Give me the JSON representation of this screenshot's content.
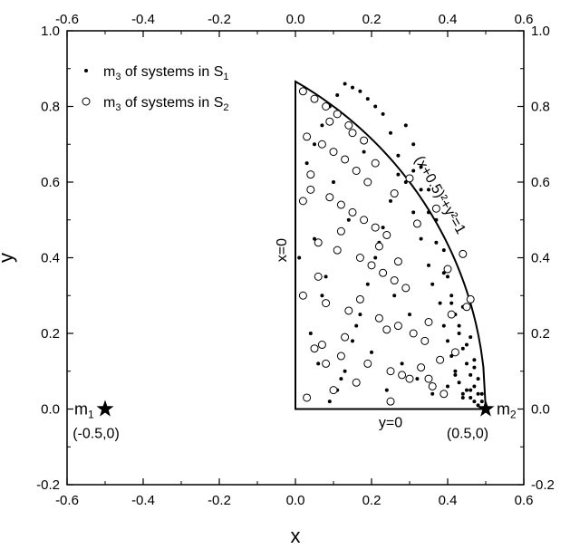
{
  "chart_data": {
    "type": "scatter",
    "xlabel": "x",
    "ylabel": "y",
    "xlim": [
      -0.6,
      0.6
    ],
    "ylim": [
      -0.2,
      1.0
    ],
    "xticks": [
      -0.6,
      -0.4,
      -0.2,
      0.0,
      0.2,
      0.4,
      0.6
    ],
    "yticks": [
      -0.2,
      0.0,
      0.2,
      0.4,
      0.6,
      0.8,
      1.0
    ],
    "x_tick_labels": [
      "-0.6",
      "-0.4",
      "-0.2",
      "0.0",
      "0.2",
      "0.4",
      "0.6"
    ],
    "y_tick_labels": [
      "-0.2",
      "0.0",
      "0.2",
      "0.4",
      "0.6",
      "0.8",
      "1.0"
    ],
    "grid": false,
    "legend_position": "top-left",
    "series": [
      {
        "name_main": "m",
        "name_sub": "3",
        "name_rest": " of systems in S",
        "name_sub2": "1",
        "marker": "filled-dot",
        "color": "#000000",
        "x": [
          0.48,
          0.47,
          0.46,
          0.49,
          0.45,
          0.44,
          0.47,
          0.43,
          0.46,
          0.48,
          0.42,
          0.45,
          0.41,
          0.44,
          0.47,
          0.4,
          0.43,
          0.39,
          0.42,
          0.46,
          0.38,
          0.41,
          0.36,
          0.4,
          0.44,
          0.35,
          0.39,
          0.33,
          0.37,
          0.31,
          0.35,
          0.29,
          0.33,
          0.27,
          0.31,
          0.25,
          0.29,
          0.23,
          0.27,
          0.21,
          0.25,
          0.19,
          0.23,
          0.17,
          0.21,
          0.15,
          0.19,
          0.13,
          0.17,
          0.11,
          0.15,
          0.09,
          0.13,
          0.07,
          0.11,
          0.05,
          0.09,
          0.03,
          0.07,
          0.02,
          0.05,
          0.01,
          0.04,
          0.06,
          0.08,
          0.1,
          0.12,
          0.14,
          0.16,
          0.18,
          0.2,
          0.22,
          0.24,
          0.26,
          0.28,
          0.3,
          0.32,
          0.34,
          0.36,
          0.38,
          0.4,
          0.42,
          0.44,
          0.46,
          0.48,
          0.49,
          0.47,
          0.45,
          0.43,
          0.41,
          0.39,
          0.37,
          0.35,
          0.33,
          0.31
        ],
        "y": [
          0.01,
          0.02,
          0.03,
          0.02,
          0.05,
          0.04,
          0.06,
          0.07,
          0.09,
          0.04,
          0.1,
          0.12,
          0.14,
          0.16,
          0.11,
          0.18,
          0.2,
          0.22,
          0.25,
          0.19,
          0.28,
          0.3,
          0.33,
          0.35,
          0.27,
          0.38,
          0.42,
          0.45,
          0.5,
          0.52,
          0.58,
          0.6,
          0.64,
          0.67,
          0.7,
          0.73,
          0.75,
          0.78,
          0.62,
          0.8,
          0.55,
          0.82,
          0.48,
          0.84,
          0.4,
          0.85,
          0.33,
          0.86,
          0.25,
          0.83,
          0.18,
          0.8,
          0.1,
          0.75,
          0.05,
          0.7,
          0.02,
          0.65,
          0.3,
          0.55,
          0.45,
          0.4,
          0.2,
          0.12,
          0.35,
          0.6,
          0.08,
          0.5,
          0.22,
          0.68,
          0.15,
          0.44,
          0.05,
          0.3,
          0.12,
          0.25,
          0.08,
          0.18,
          0.04,
          0.13,
          0.06,
          0.09,
          0.03,
          0.05,
          0.08,
          0.04,
          0.13,
          0.17,
          0.22,
          0.28,
          0.36,
          0.44,
          0.52,
          0.58,
          0.63
        ]
      },
      {
        "name_main": "m",
        "name_sub": "3",
        "name_rest": " of systems in S",
        "name_sub2": "2",
        "marker": "open-circle",
        "color": "#000000",
        "x": [
          0.02,
          0.05,
          0.08,
          0.11,
          0.14,
          0.03,
          0.07,
          0.1,
          0.13,
          0.16,
          0.19,
          0.04,
          0.09,
          0.12,
          0.15,
          0.18,
          0.21,
          0.24,
          0.06,
          0.11,
          0.17,
          0.2,
          0.23,
          0.26,
          0.29,
          0.02,
          0.08,
          0.14,
          0.22,
          0.27,
          0.31,
          0.34,
          0.05,
          0.12,
          0.19,
          0.25,
          0.3,
          0.36,
          0.39,
          0.03,
          0.1,
          0.16,
          0.28,
          0.33,
          0.38,
          0.42,
          0.07,
          0.13,
          0.24,
          0.35,
          0.41,
          0.45,
          0.04,
          0.18,
          0.26,
          0.32,
          0.4,
          0.46,
          0.09,
          0.21,
          0.37,
          0.44,
          0.15,
          0.3,
          0.06,
          0.22,
          0.02,
          0.12,
          0.27,
          0.17,
          0.35,
          0.08,
          0.25
        ],
        "y": [
          0.84,
          0.82,
          0.8,
          0.78,
          0.75,
          0.72,
          0.7,
          0.68,
          0.66,
          0.63,
          0.6,
          0.58,
          0.56,
          0.54,
          0.52,
          0.5,
          0.48,
          0.46,
          0.44,
          0.42,
          0.4,
          0.38,
          0.36,
          0.34,
          0.32,
          0.3,
          0.28,
          0.26,
          0.24,
          0.22,
          0.2,
          0.18,
          0.16,
          0.14,
          0.12,
          0.1,
          0.08,
          0.06,
          0.04,
          0.03,
          0.05,
          0.07,
          0.09,
          0.11,
          0.13,
          0.15,
          0.17,
          0.19,
          0.21,
          0.23,
          0.25,
          0.27,
          0.62,
          0.71,
          0.57,
          0.49,
          0.37,
          0.29,
          0.76,
          0.65,
          0.53,
          0.41,
          0.73,
          0.61,
          0.35,
          0.43,
          0.55,
          0.47,
          0.39,
          0.29,
          0.08,
          0.12,
          0.02
        ]
      }
    ],
    "annotations": {
      "x_zero_label": "x=0",
      "y_zero_label": "y=0",
      "curve_label": "(x+0.5)²+y²=1",
      "m1_label_main": "m",
      "m1_label_sub": "1",
      "m1_coords": "(-0.5,0)",
      "m2_label_main": "m",
      "m2_label_sub": "2",
      "m2_coords": "(0.5,0)"
    },
    "masses": [
      {
        "name": "m1",
        "x": -0.5,
        "y": 0.0
      },
      {
        "name": "m2",
        "x": 0.5,
        "y": 0.0
      }
    ],
    "region": {
      "center_x": -0.5,
      "center_y": 0.0,
      "radius": 1.0
    }
  }
}
